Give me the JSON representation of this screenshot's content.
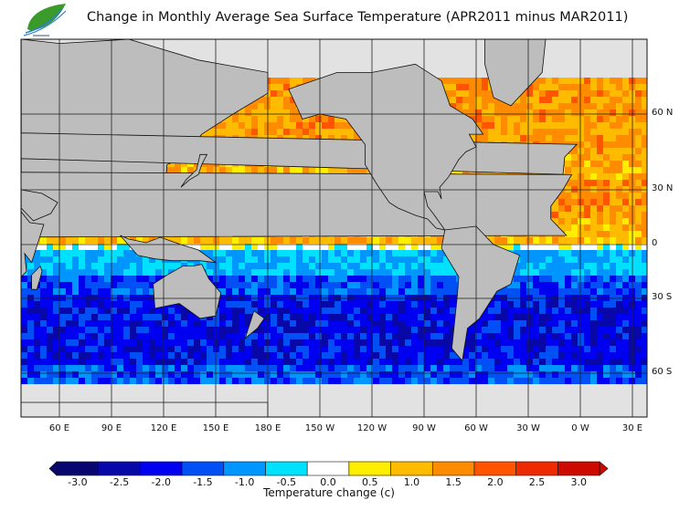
{
  "title": "Change in Monthly Average Sea Surface Temperature (APR2011 minus MAR2011)",
  "logo": {
    "text": "HKO logo"
  },
  "map": {
    "lat_labels": [
      "60 N",
      "30 N",
      "0",
      "30 S",
      "60 S"
    ],
    "lon_labels": [
      "60 E",
      "90 E",
      "120 E",
      "150 E",
      "180 E",
      "150 W",
      "120 W",
      "90 W",
      "60 W",
      "30 W",
      "0 W",
      "30 E"
    ],
    "land_color": "#bdbdbd",
    "ice_color": "#e2e2e2"
  },
  "colorbar": {
    "title": "Temperature change  (c)",
    "ticks": [
      "-3.0",
      "-2.5",
      "-2.0",
      "-1.5",
      "-1.0",
      "-0.5",
      "0.0",
      "0.5",
      "1.0",
      "1.5",
      "2.0",
      "2.5",
      "3.0"
    ],
    "colors": [
      "#06066e",
      "#0808a8",
      "#0000f0",
      "#0050f5",
      "#0096ff",
      "#00e0ff",
      "#ffffff",
      "#ffee00",
      "#ffbb00",
      "#ff8c00",
      "#ff5500",
      "#ee2a00",
      "#cc0a00"
    ]
  }
}
